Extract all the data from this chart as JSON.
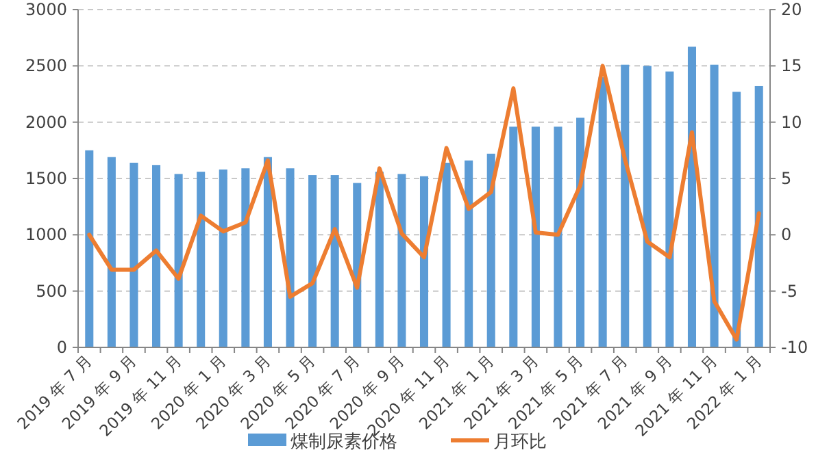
{
  "chart_data": {
    "type": "bar",
    "categories": [
      "2019 年 7 月",
      null,
      "2019 年 9 月",
      null,
      "2019 年 11 月",
      null,
      "2020 年 1 月",
      null,
      "2020 年 3 月",
      null,
      "2020 年 5 月",
      null,
      "2020 年 7 月",
      null,
      "2020 年 9 月",
      null,
      "2020 年 11 月",
      null,
      "2021 年 1 月",
      null,
      "2021 年 3 月",
      null,
      "2021 年 5 月",
      null,
      "2021 年 7 月",
      null,
      "2021 年 9 月",
      null,
      "2021 年 11 月",
      null,
      "2022 年 1 月"
    ],
    "series": [
      {
        "name": "煤制尿素价格",
        "color": "#5b9bd5",
        "values": [
          1750,
          1690,
          1640,
          1620,
          1540,
          1560,
          1580,
          1590,
          1690,
          1590,
          1530,
          1530,
          1460,
          1560,
          1540,
          1520,
          1640,
          1660,
          1720,
          1960,
          1960,
          1960,
          2040,
          2400,
          2510,
          2500,
          2450,
          2670,
          2510,
          2270,
          2320
        ]
      },
      {
        "name": "月环比",
        "type": "line",
        "axis": "y2",
        "color": "#ed7d31",
        "values": [
          0.0,
          -3.1,
          -3.1,
          -1.4,
          -3.9,
          1.7,
          0.3,
          1.1,
          6.6,
          -5.5,
          -4.3,
          0.5,
          -4.7,
          5.9,
          0.1,
          -2.0,
          7.7,
          2.3,
          3.8,
          13.0,
          0.2,
          0.0,
          4.4,
          15.0,
          6.7,
          -0.6,
          -2.0,
          9.1,
          -5.9,
          -9.3,
          1.9
        ]
      }
    ],
    "ylim": [
      0,
      3000
    ],
    "yticks": [
      0,
      500,
      1000,
      1500,
      2000,
      2500,
      3000
    ],
    "y2lim": [
      -10,
      20
    ],
    "y2ticks": [
      -10,
      -5,
      0,
      5,
      10,
      15,
      20
    ],
    "grid": "y",
    "legend": "bottom",
    "marker": "none",
    "line_style": "solid"
  }
}
